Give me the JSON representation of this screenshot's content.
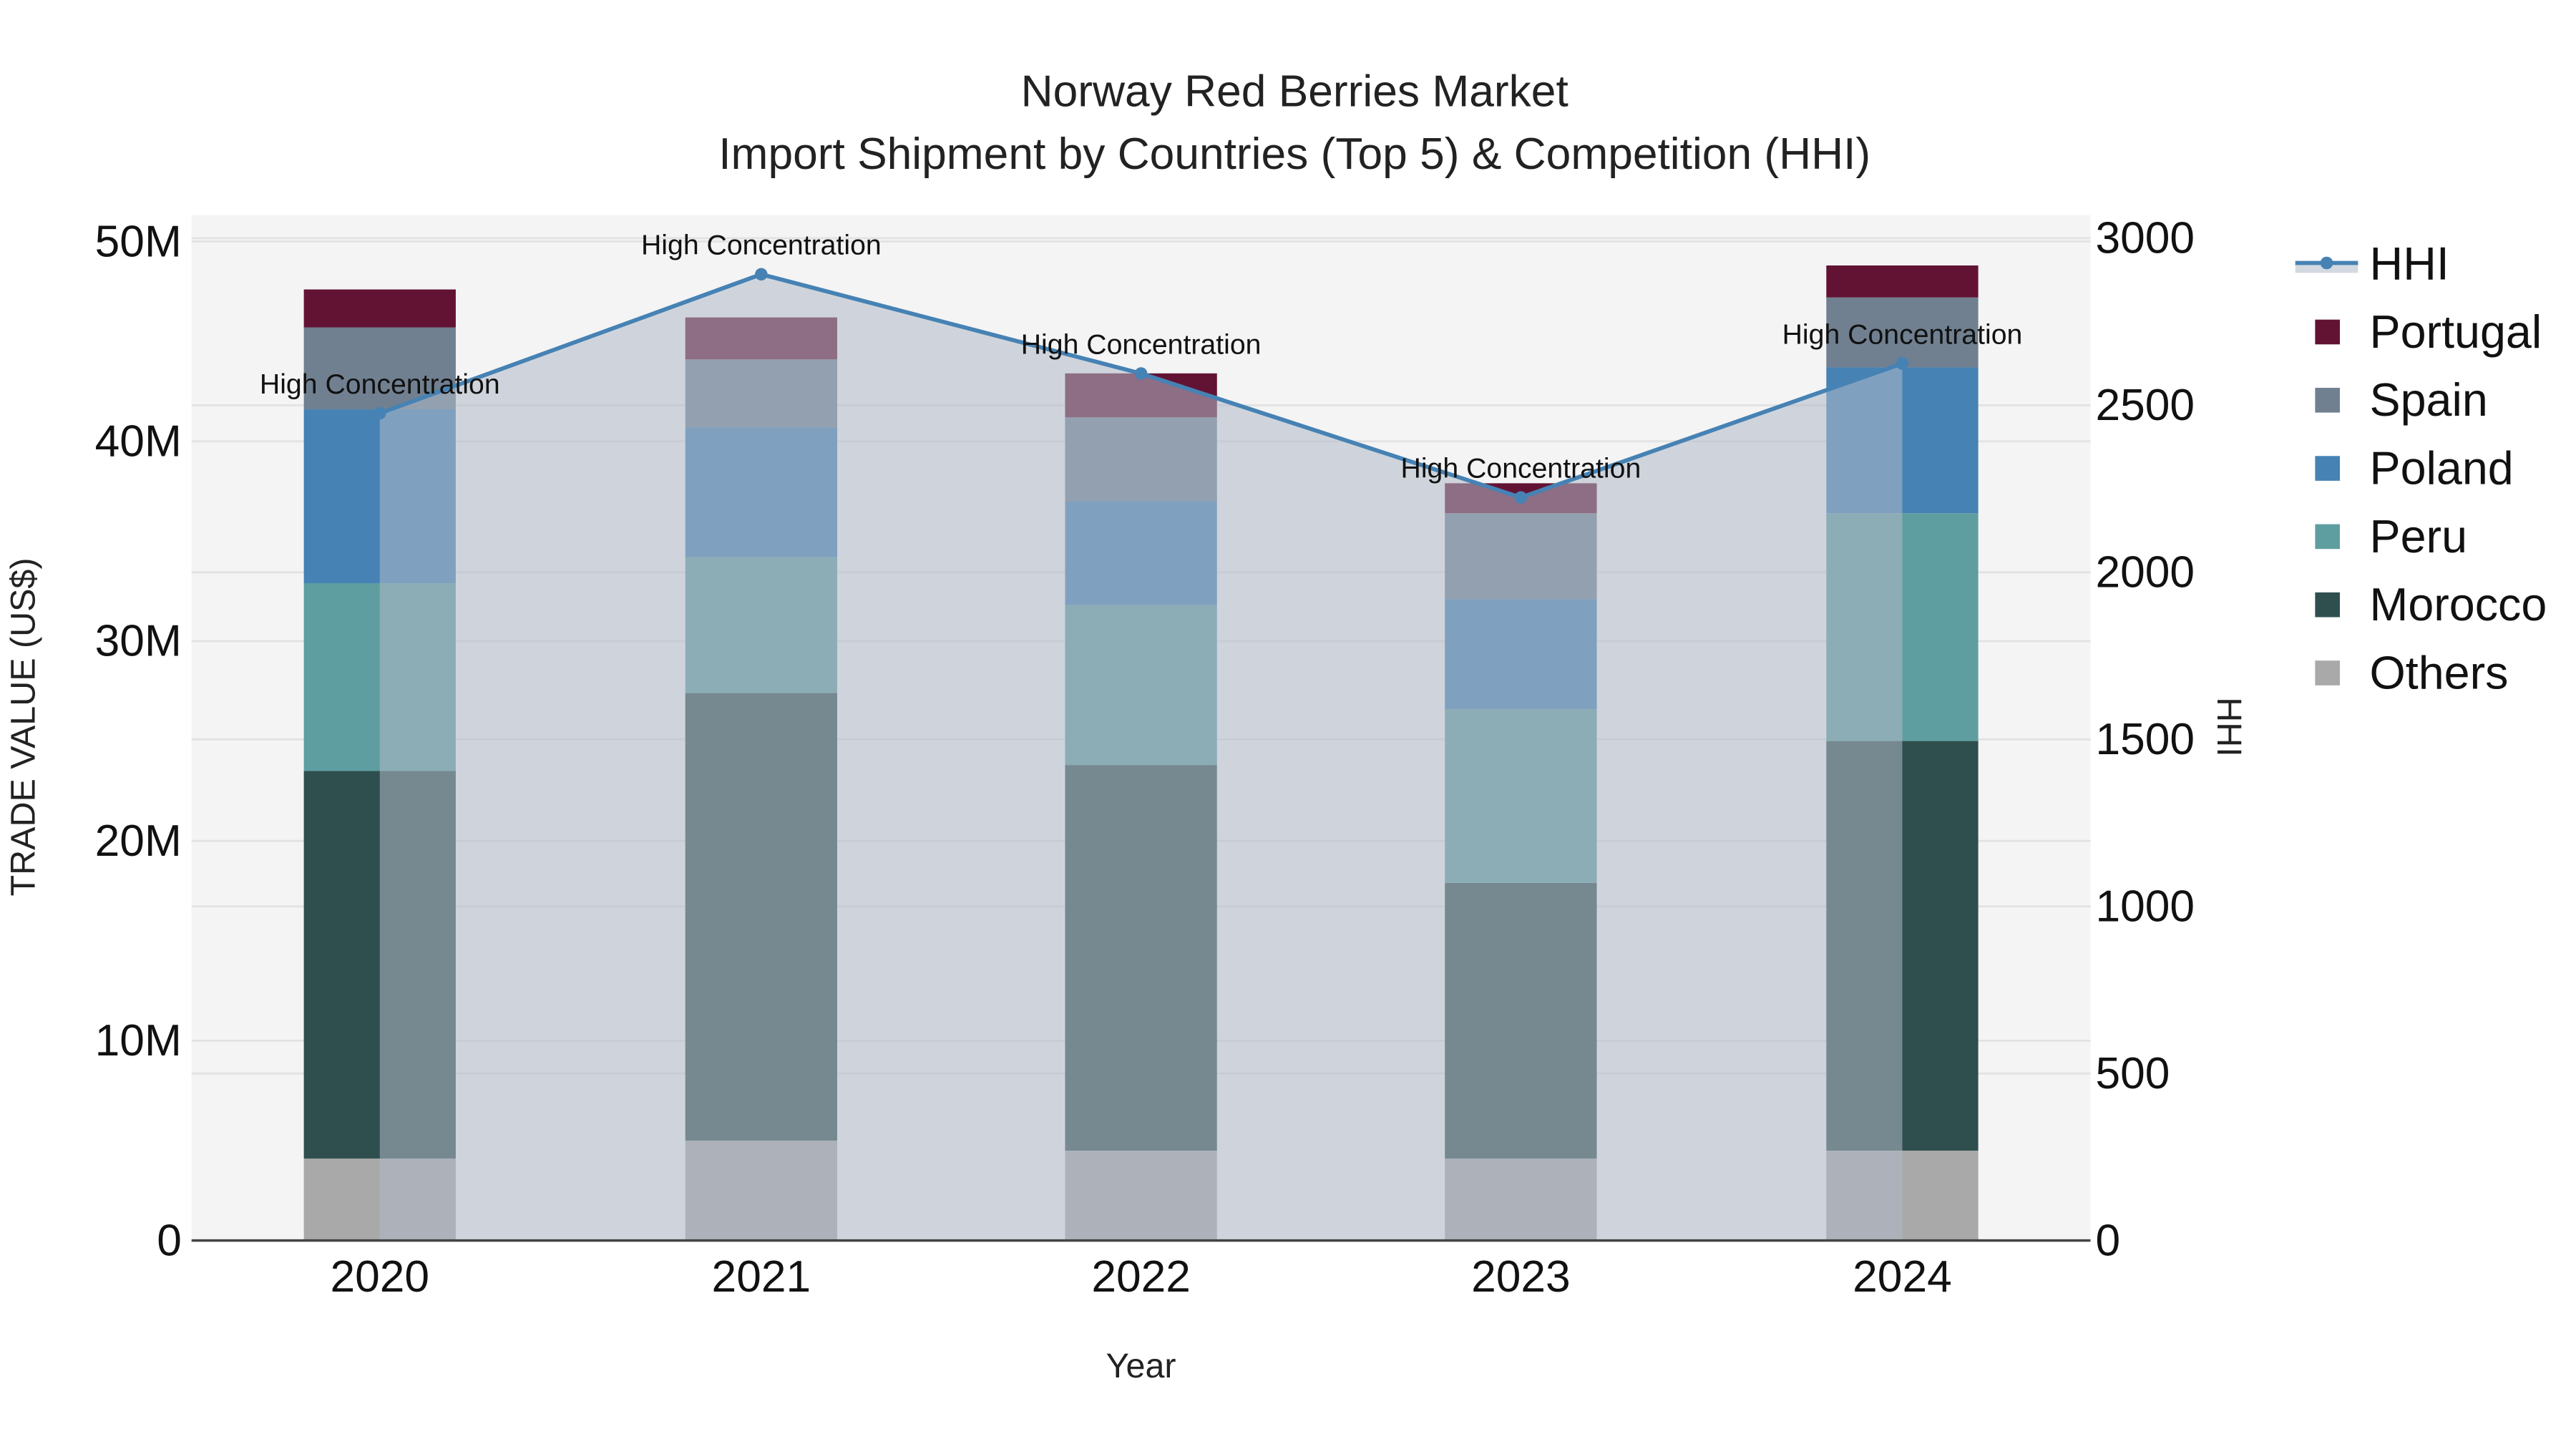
{
  "title": {
    "line1": "Norway Red Berries Market",
    "line2": "Import Shipment by Countries (Top 5) & Competition (HHI)"
  },
  "axes": {
    "x_label": "Year",
    "y_left_label": "TRADE VALUE (US$)",
    "y_right_label": "HHI",
    "y_left_ticks": [
      "0",
      "10M",
      "20M",
      "30M",
      "40M",
      "50M"
    ],
    "y_right_ticks": [
      "0",
      "500",
      "1000",
      "1500",
      "2000",
      "2500",
      "3000"
    ]
  },
  "legend": {
    "items": [
      {
        "label": "HHI",
        "type": "line",
        "color": "#4682b4"
      },
      {
        "label": "Portugal",
        "type": "bar",
        "color": "#621334"
      },
      {
        "label": "Spain",
        "type": "bar",
        "color": "#708090"
      },
      {
        "label": "Poland",
        "type": "bar",
        "color": "#4682b4"
      },
      {
        "label": "Peru",
        "type": "bar",
        "color": "#5f9ea0"
      },
      {
        "label": "Morocco",
        "type": "bar",
        "color": "#2f4f4f"
      },
      {
        "label": "Others",
        "type": "bar",
        "color": "#a9a9a9"
      }
    ]
  },
  "colors": {
    "plot_bg": "#f4f4f4",
    "hhi_fill": "rgba(176,186,200,0.55)",
    "hhi_line": "#4682b4",
    "grid": "#e2e2e2",
    "axis_line": "#444444"
  },
  "chart_data": {
    "type": "bar",
    "stacked": true,
    "title": "Norway Red Berries Market — Import Shipment by Countries (Top 5) & Competition (HHI)",
    "xlabel": "Year",
    "ylabel": "TRADE VALUE (US$)",
    "y2label": "HHI",
    "ylim": [
      0,
      51000000
    ],
    "y2lim": [
      0,
      3050
    ],
    "grid": true,
    "legend_position": "right",
    "categories": [
      "2020",
      "2021",
      "2022",
      "2023",
      "2024"
    ],
    "series": [
      {
        "name": "Others",
        "color": "#a9a9a9",
        "values": [
          4100000,
          5000000,
          4500000,
          4100000,
          4500000
        ]
      },
      {
        "name": "Morocco",
        "color": "#2f4f4f",
        "values": [
          19400000,
          22400000,
          19300000,
          13800000,
          20500000
        ]
      },
      {
        "name": "Peru",
        "color": "#5f9ea0",
        "values": [
          9400000,
          6800000,
          8000000,
          8700000,
          11400000
        ]
      },
      {
        "name": "Poland",
        "color": "#4682b4",
        "values": [
          8700000,
          6500000,
          5200000,
          5500000,
          7300000
        ]
      },
      {
        "name": "Spain",
        "color": "#708090",
        "values": [
          4100000,
          3400000,
          4200000,
          4300000,
          3500000
        ]
      },
      {
        "name": "Portugal",
        "color": "#621334",
        "values": [
          1900000,
          2100000,
          2200000,
          1500000,
          1600000
        ]
      }
    ],
    "line_series": {
      "name": "HHI",
      "axis": "right",
      "type": "line+area",
      "color": "#4682b4",
      "values": [
        2476,
        2892,
        2595,
        2224,
        2625
      ]
    },
    "annotations": [
      {
        "x": "2020",
        "text": "High Concentration"
      },
      {
        "x": "2021",
        "text": "High Concentration"
      },
      {
        "x": "2022",
        "text": "High Concentration"
      },
      {
        "x": "2023",
        "text": "High Concentration"
      },
      {
        "x": "2024",
        "text": "High Concentration"
      }
    ]
  }
}
